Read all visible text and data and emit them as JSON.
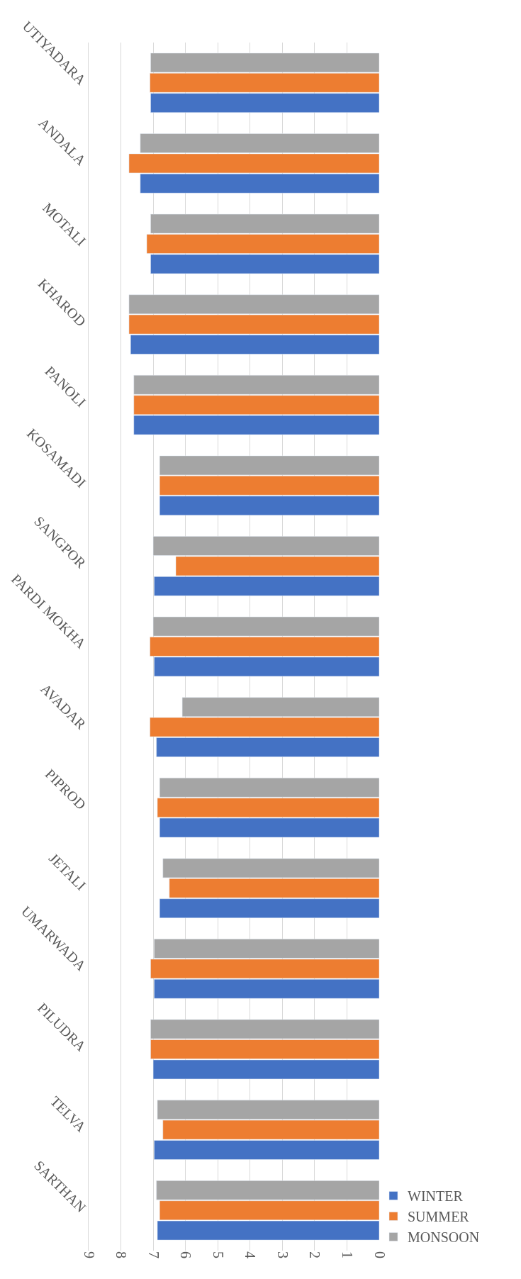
{
  "chart_data": {
    "type": "bar",
    "orientation": "horizontal",
    "categories": [
      "UTIYADARA",
      "ANDALA",
      "MOTALI",
      "KHAROD",
      "PANOLI",
      "KOSAMADI",
      "SANGPOR",
      "PARDI MOKHA",
      "AVADAR",
      "PIPROD",
      "JETALI",
      "UMARWADA",
      "PILUDRA",
      "TELVA",
      "SARTHAN"
    ],
    "series": [
      {
        "name": "WINTER",
        "color": "#4472c4",
        "values": [
          7.08,
          7.4,
          7.08,
          7.7,
          7.6,
          6.8,
          6.97,
          6.97,
          6.9,
          6.8,
          6.8,
          6.97,
          7.0,
          6.97,
          6.87
        ]
      },
      {
        "name": "SUMMER",
        "color": "#ed7d31",
        "values": [
          7.1,
          7.75,
          7.2,
          7.75,
          7.6,
          6.8,
          6.3,
          7.1,
          7.1,
          6.87,
          6.5,
          7.08,
          7.08,
          6.7,
          6.8
        ]
      },
      {
        "name": "MONSOON",
        "color": "#a5a5a5",
        "values": [
          7.08,
          7.4,
          7.08,
          7.75,
          7.6,
          6.8,
          7.0,
          7.0,
          6.1,
          6.8,
          6.7,
          6.97,
          7.08,
          6.87,
          6.9
        ]
      }
    ],
    "xlim": [
      9,
      0
    ],
    "xticks": [
      0,
      1,
      2,
      3,
      4,
      5,
      6,
      7,
      8,
      9
    ],
    "grid": "x",
    "legend": "bottom right"
  }
}
